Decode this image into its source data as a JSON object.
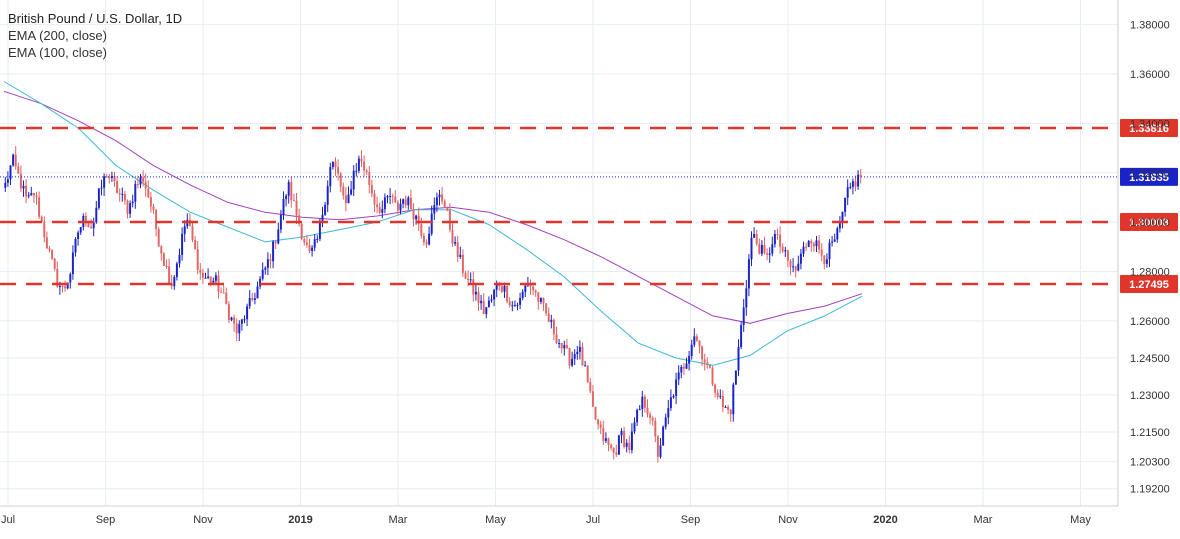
{
  "legend": {
    "title": "British Pound / U.S. Dollar, 1D",
    "ema1": "EMA (200, close)",
    "ema2": "EMA (100, close)"
  },
  "chart_data": {
    "type": "candlestick",
    "title": "British Pound / U.S. Dollar, 1D",
    "ylim": [
      1.185,
      1.39
    ],
    "y_ticks": [
      "1.38000",
      "1.36000",
      "1.34000",
      "1.32000",
      "1.30000",
      "1.28000",
      "1.26000",
      "1.24500",
      "1.23000",
      "1.21500",
      "1.20300",
      "1.19200"
    ],
    "x_labels": [
      "Jul",
      "Sep",
      "Nov",
      "2019",
      "Mar",
      "May",
      "Jul",
      "Sep",
      "Nov",
      "2020",
      "Mar",
      "May"
    ],
    "grid": true,
    "colors": {
      "up": "#1a23c7",
      "down": "#e06666",
      "ema200": "#a23fbf",
      "ema100": "#3fb8d6",
      "level": "#e0352b",
      "current": "#1a23c7"
    },
    "levels": [
      {
        "label": "1.33816",
        "value": 1.33816
      },
      {
        "label": "1.30008",
        "value": 1.30008
      },
      {
        "label": "1.27495",
        "value": 1.27495
      }
    ],
    "current": {
      "label": "1.31835",
      "value": 1.31835
    },
    "series": [
      {
        "name": "EMA (200, close)",
        "values": [
          1.353,
          1.348,
          1.341,
          1.333,
          1.323,
          1.315,
          1.308,
          1.304,
          1.302,
          1.301,
          1.3025,
          1.305,
          1.306,
          1.304,
          1.299,
          1.293,
          1.286,
          1.278,
          1.27,
          1.262,
          1.259,
          1.263,
          1.266,
          1.271
        ]
      },
      {
        "name": "EMA (100, close)",
        "values": [
          1.357,
          1.348,
          1.338,
          1.323,
          1.313,
          1.304,
          1.298,
          1.292,
          1.294,
          1.297,
          1.3,
          1.305,
          1.305,
          1.299,
          1.289,
          1.278,
          1.264,
          1.251,
          1.245,
          1.242,
          1.246,
          1.256,
          1.262,
          1.27
        ]
      }
    ],
    "price_path": [
      1.315,
      1.325,
      1.317,
      1.308,
      1.312,
      1.3,
      1.288,
      1.277,
      1.272,
      1.28,
      1.296,
      1.302,
      1.298,
      1.312,
      1.32,
      1.315,
      1.31,
      1.305,
      1.315,
      1.318,
      1.308,
      1.295,
      1.283,
      1.275,
      1.288,
      1.302,
      1.29,
      1.278,
      1.277,
      1.276,
      1.27,
      1.262,
      1.255,
      1.262,
      1.268,
      1.275,
      1.282,
      1.29,
      1.303,
      1.315,
      1.305,
      1.295,
      1.286,
      1.292,
      1.308,
      1.325,
      1.318,
      1.305,
      1.32,
      1.326,
      1.318,
      1.308,
      1.305,
      1.311,
      1.305,
      1.31,
      1.306,
      1.3,
      1.292,
      1.304,
      1.313,
      1.302,
      1.29,
      1.282,
      1.275,
      1.27,
      1.264,
      1.268,
      1.276,
      1.272,
      1.266,
      1.268,
      1.276,
      1.272,
      1.266,
      1.26,
      1.254,
      1.248,
      1.244,
      1.25,
      1.239,
      1.224,
      1.215,
      1.21,
      1.206,
      1.214,
      1.208,
      1.22,
      1.228,
      1.222,
      1.206,
      1.218,
      1.23,
      1.238,
      1.245,
      1.255,
      1.248,
      1.24,
      1.233,
      1.225,
      1.223,
      1.245,
      1.27,
      1.295,
      1.29,
      1.284,
      1.295,
      1.29,
      1.283,
      1.28,
      1.288,
      1.295,
      1.29,
      1.286,
      1.29,
      1.296,
      1.31,
      1.316,
      1.3183
    ]
  }
}
